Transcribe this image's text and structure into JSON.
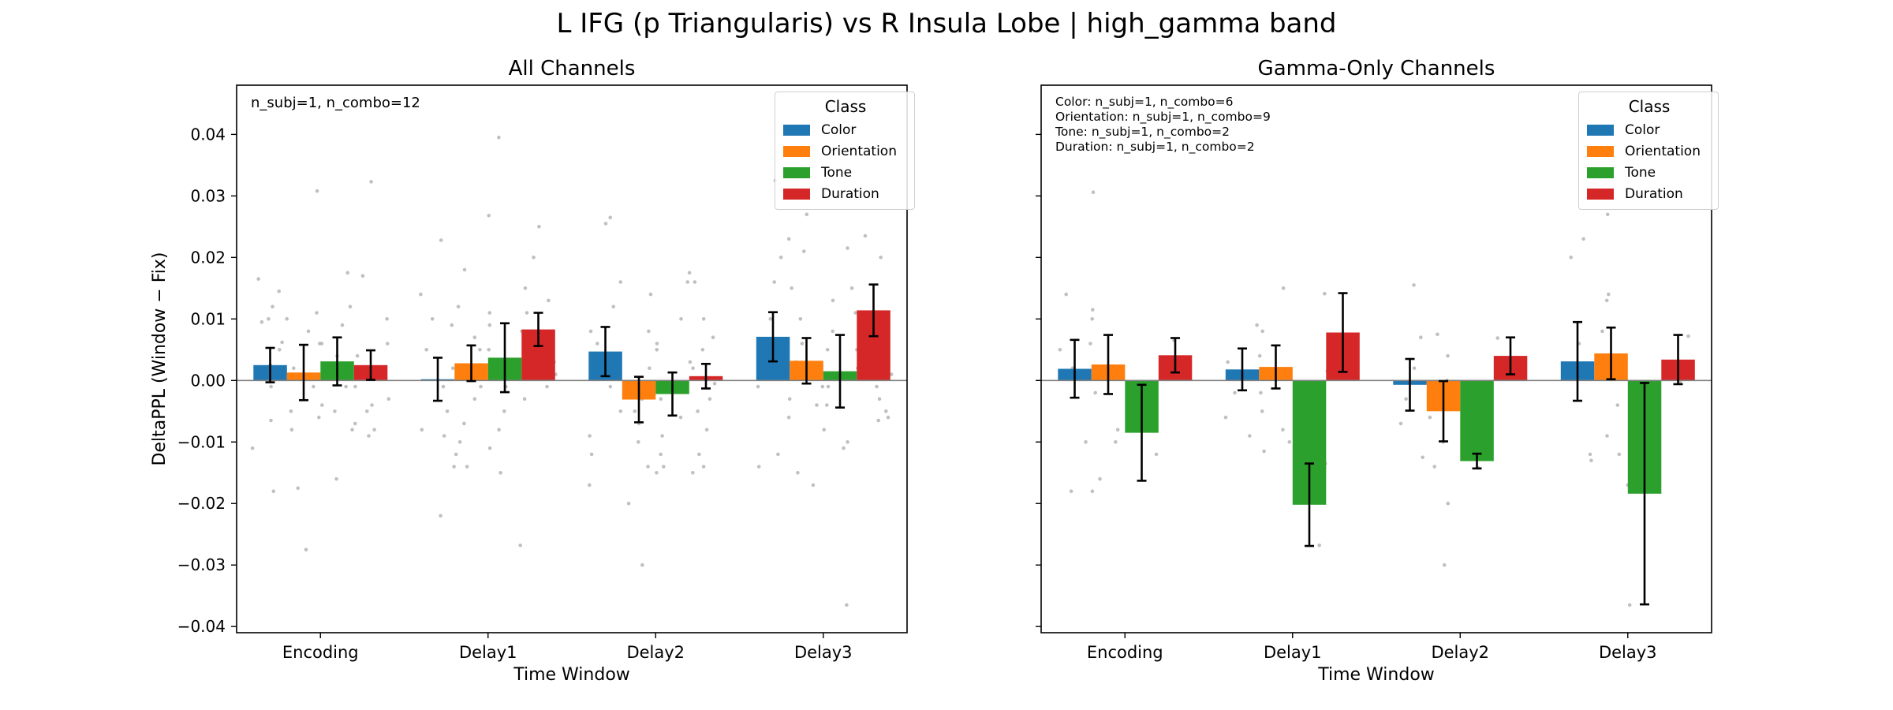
{
  "suptitle": "L IFG (p Triangularis) vs R Insula Lobe  |  high_gamma band",
  "colors": {
    "Color": "#1f77b4",
    "Orientation": "#ff7f0e",
    "Tone": "#2ca02c",
    "Duration": "#d62728",
    "jitter_points": "#b0b0b0",
    "zero_line": "#808080"
  },
  "chart_data": [
    {
      "type": "bar",
      "title": "All Channels",
      "xlabel": "Time Window",
      "ylabel": "DeltaPPL (Window − Fix)",
      "categories": [
        "Encoding",
        "Delay1",
        "Delay2",
        "Delay3"
      ],
      "ylim": [
        -0.041,
        0.048
      ],
      "yticks": [
        "0.04",
        "0.03",
        "0.02",
        "0.01",
        "0.00",
        "−0.01",
        "−0.02",
        "−0.03",
        "−0.04"
      ],
      "ytick_values": [
        0.04,
        0.03,
        0.02,
        0.01,
        0.0,
        -0.01,
        -0.02,
        -0.03,
        -0.04
      ],
      "annotation": [
        "n_subj=1, n_combo=12"
      ],
      "legend": {
        "title": "Class",
        "entries": [
          "Color",
          "Orientation",
          "Tone",
          "Duration"
        ],
        "loc": "upper right"
      },
      "series": [
        {
          "name": "Color",
          "values": [
            0.0025,
            0.0002,
            0.0047,
            0.0071
          ],
          "err": [
            0.0028,
            0.0035,
            0.004,
            0.004
          ]
        },
        {
          "name": "Orientation",
          "values": [
            0.0013,
            0.0028,
            -0.0031,
            0.0032
          ],
          "err": [
            0.0045,
            0.0029,
            0.0037,
            0.0037
          ]
        },
        {
          "name": "Tone",
          "values": [
            0.0031,
            0.0037,
            -0.0022,
            0.0015
          ],
          "err": [
            0.0039,
            0.0056,
            0.0035,
            0.0059
          ]
        },
        {
          "name": "Duration",
          "values": [
            0.0025,
            0.0083,
            0.0007,
            0.0114
          ],
          "err": [
            0.0024,
            0.0027,
            0.002,
            0.0042
          ]
        }
      ],
      "points": [
        [
          [
            0.0165,
            0.0145,
            0.012,
            0.01,
            0.0095,
            0.0062,
            0.005,
            0.0025,
            -0.001,
            -0.0065,
            -0.011,
            -0.018
          ],
          [
            0.0308,
            0.011,
            0.01,
            0.008,
            0.006,
            0.002,
            -0.001,
            -0.005,
            -0.006,
            -0.008,
            -0.0175,
            -0.0275
          ],
          [
            0.0175,
            0.012,
            0.009,
            0.006,
            0.004,
            0.002,
            -0.001,
            -0.004,
            -0.005,
            -0.007,
            -0.008,
            -0.016
          ],
          [
            0.0323,
            0.017,
            0.01,
            0.006,
            0.004,
            0.002,
            -0.001,
            -0.003,
            -0.004,
            -0.005,
            -0.008,
            -0.009
          ]
        ],
        [
          [
            0.0228,
            0.014,
            0.01,
            0.009,
            0.005,
            0.002,
            -0.001,
            -0.005,
            -0.008,
            -0.009,
            -0.014,
            -0.022
          ],
          [
            0.018,
            0.012,
            0.009,
            0.007,
            0.005,
            0.002,
            -0.001,
            -0.003,
            -0.007,
            -0.01,
            -0.012,
            -0.014
          ],
          [
            0.0395,
            0.0268,
            0.011,
            0.008,
            0.005,
            0.002,
            -0.001,
            -0.005,
            -0.008,
            -0.011,
            -0.015,
            -0.0268
          ],
          [
            0.025,
            0.02,
            0.015,
            0.013,
            0.011,
            0.008,
            0.005,
            0.003,
            0.002,
            0.001,
            -0.001,
            -0.003
          ]
        ],
        [
          [
            0.0265,
            0.0255,
            0.016,
            0.012,
            0.008,
            0.006,
            0.003,
            -0.001,
            -0.005,
            -0.009,
            -0.012,
            -0.017
          ],
          [
            0.014,
            0.008,
            0.005,
            0.002,
            -0.001,
            -0.003,
            -0.005,
            -0.007,
            -0.01,
            -0.014,
            -0.02,
            -0.03
          ],
          [
            0.0175,
            0.016,
            0.01,
            0.006,
            0.003,
            -0.001,
            -0.003,
            -0.006,
            -0.009,
            -0.012,
            -0.014,
            -0.015
          ],
          [
            0.016,
            0.01,
            0.007,
            0.005,
            0.002,
            -0.0005,
            -0.003,
            -0.005,
            -0.008,
            -0.012,
            -0.014,
            -0.015
          ]
        ],
        [
          [
            0.0325,
            0.023,
            0.02,
            0.016,
            0.01,
            0.006,
            0.003,
            -0.001,
            -0.003,
            -0.006,
            -0.012,
            -0.014
          ],
          [
            0.031,
            0.027,
            0.021,
            0.015,
            0.01,
            0.006,
            0.003,
            -0.001,
            -0.004,
            -0.008,
            -0.015,
            -0.017
          ],
          [
            0.0215,
            0.015,
            0.013,
            0.011,
            0.008,
            0.005,
            0.002,
            -0.001,
            -0.004,
            -0.01,
            -0.011,
            -0.0365
          ],
          [
            0.0235,
            0.02,
            0.011,
            0.007,
            0.005,
            0.003,
            0.001,
            -0.001,
            -0.003,
            -0.005,
            -0.006,
            -0.0065
          ]
        ]
      ]
    },
    {
      "type": "bar",
      "title": "Gamma-Only Channels",
      "xlabel": "Time Window",
      "ylabel": "",
      "categories": [
        "Encoding",
        "Delay1",
        "Delay2",
        "Delay3"
      ],
      "ylim": [
        -0.041,
        0.048
      ],
      "yticks": [],
      "ytick_values": [
        0.04,
        0.03,
        0.02,
        0.01,
        0.0,
        -0.01,
        -0.02,
        -0.03,
        -0.04
      ],
      "annotation": [
        "Color: n_subj=1, n_combo=6",
        "Orientation: n_subj=1, n_combo=9",
        "Tone: n_subj=1, n_combo=2",
        "Duration: n_subj=1, n_combo=2"
      ],
      "legend": {
        "title": "Class",
        "entries": [
          "Color",
          "Orientation",
          "Tone",
          "Duration"
        ],
        "loc": "upper right"
      },
      "series": [
        {
          "name": "Color",
          "values": [
            0.0019,
            0.0018,
            -0.0007,
            0.0031
          ],
          "err": [
            0.0047,
            0.0034,
            0.0042,
            0.0064
          ]
        },
        {
          "name": "Orientation",
          "values": [
            0.0026,
            0.0022,
            -0.005,
            0.0044
          ],
          "err": [
            0.0048,
            0.0035,
            0.0049,
            0.0042
          ]
        },
        {
          "name": "Tone",
          "values": [
            -0.0085,
            -0.0202,
            -0.0131,
            -0.0184
          ],
          "err": [
            0.0078,
            0.0067,
            0.0012,
            0.018
          ]
        },
        {
          "name": "Duration",
          "values": [
            0.0041,
            0.0078,
            0.004,
            0.0034
          ],
          "err": [
            0.0028,
            0.0064,
            0.003,
            0.004
          ]
        }
      ],
      "points": [
        [
          [
            0.014,
            0.0115,
            0.005,
            0.002,
            -0.01,
            -0.018
          ],
          [
            0.0306,
            0.01,
            0.006,
            0.002,
            -0.002,
            -0.008,
            -0.01,
            -0.016,
            -0.018
          ],
          [
            -0.005,
            -0.012
          ],
          [
            0.0065,
            0.0015
          ]
        ],
        [
          [
            0.009,
            0.003,
            0.001,
            -0.002,
            -0.006,
            -0.009
          ],
          [
            0.015,
            0.008,
            0.004,
            0.001,
            -0.002,
            -0.005,
            -0.008,
            -0.01,
            -0.0115
          ],
          [
            -0.0135,
            -0.0268
          ],
          [
            0.0141,
            0.0015
          ]
        ],
        [
          [
            0.0155,
            0.007,
            0.002,
            -0.003,
            -0.007,
            -0.0125
          ],
          [
            0.0075,
            0.004,
            0.0,
            -0.003,
            -0.006,
            -0.01,
            -0.014,
            -0.02,
            -0.03
          ],
          [
            -0.012,
            -0.0142
          ],
          [
            0.0069,
            0.001
          ]
        ],
        [
          [
            0.023,
            0.02,
            0.006,
            0.001,
            -0.012,
            -0.013
          ],
          [
            0.027,
            0.014,
            0.013,
            0.008,
            0.002,
            -0.004,
            -0.009,
            -0.012,
            -0.017
          ],
          [
            -0.0005,
            -0.0365
          ],
          [
            0.0072,
            -0.0003
          ]
        ]
      ]
    }
  ]
}
